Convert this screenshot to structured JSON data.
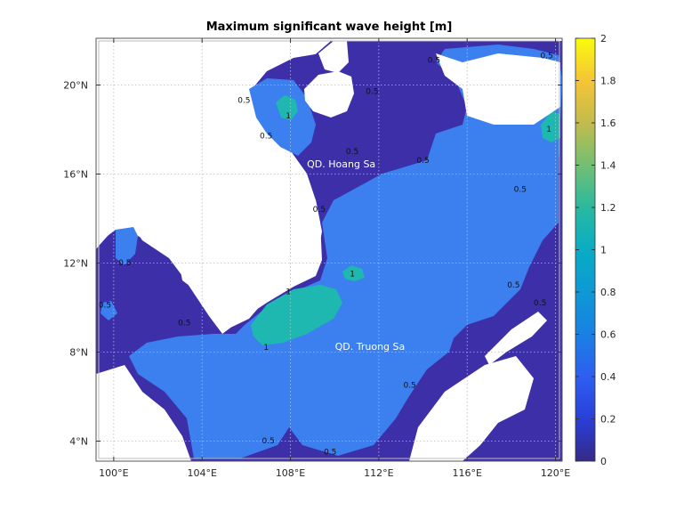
{
  "chart_data": {
    "type": "heatmap",
    "title": "Maximum significant wave height [m]",
    "xlabel": "",
    "ylabel": "",
    "xlim": [
      99.2,
      120.3
    ],
    "ylim": [
      3.1,
      22.1
    ],
    "x_ticks": [
      100,
      104,
      108,
      112,
      116,
      120
    ],
    "x_tick_labels": [
      "100°E",
      "104°E",
      "108°E",
      "112°E",
      "116°E",
      "120°E"
    ],
    "y_ticks": [
      4,
      8,
      12,
      16,
      20
    ],
    "y_tick_labels": [
      "4°N",
      "8°N",
      "12°N",
      "16°N",
      "20°N"
    ],
    "grid": true,
    "colorbar": {
      "min": 0,
      "max": 2,
      "ticks": [
        0,
        0.2,
        0.4,
        0.6,
        0.8,
        1,
        1.2,
        1.4,
        1.6,
        1.8,
        2
      ],
      "tick_labels": [
        "0",
        "0.2",
        "0.4",
        "0.6",
        "0.8",
        "1",
        "1.2",
        "1.4",
        "1.6",
        "1.8",
        "2"
      ],
      "colormap": "parula",
      "location": "right"
    },
    "levels": {
      "low": {
        "color": "#3d2fa8"
      },
      "mid": {
        "color": "#3b80ee"
      },
      "high": {
        "color": "#1fb8b0"
      }
    },
    "contour_labels": [
      {
        "text": "0.5",
        "lon": 114.5,
        "lat": 21.0
      },
      {
        "text": "0.5",
        "lon": 119.6,
        "lat": 21.2
      },
      {
        "text": "0.5",
        "lon": 105.9,
        "lat": 19.2
      },
      {
        "text": "0.5",
        "lon": 111.7,
        "lat": 19.6
      },
      {
        "text": "1",
        "lon": 107.9,
        "lat": 18.5
      },
      {
        "text": "0.5",
        "lon": 106.9,
        "lat": 17.6
      },
      {
        "text": "1",
        "lon": 119.7,
        "lat": 17.9
      },
      {
        "text": "0.5",
        "lon": 110.8,
        "lat": 16.9
      },
      {
        "text": "0.5",
        "lon": 114.0,
        "lat": 16.5
      },
      {
        "text": "0.5",
        "lon": 118.4,
        "lat": 15.2
      },
      {
        "text": "0.5",
        "lon": 109.3,
        "lat": 14.3
      },
      {
        "text": "0.5",
        "lon": 100.5,
        "lat": 11.9
      },
      {
        "text": "1",
        "lon": 110.8,
        "lat": 11.4
      },
      {
        "text": "1",
        "lon": 107.9,
        "lat": 10.6
      },
      {
        "text": "0.5",
        "lon": 118.1,
        "lat": 10.9
      },
      {
        "text": "0.5",
        "lon": 119.3,
        "lat": 10.1
      },
      {
        "text": "0.5",
        "lon": 99.6,
        "lat": 10.0
      },
      {
        "text": "0.5",
        "lon": 103.2,
        "lat": 9.2
      },
      {
        "text": "1",
        "lon": 106.9,
        "lat": 8.1
      },
      {
        "text": "0.5",
        "lon": 113.4,
        "lat": 6.4
      },
      {
        "text": "0.5",
        "lon": 107.0,
        "lat": 3.9
      },
      {
        "text": "0.5",
        "lon": 109.8,
        "lat": 3.4
      }
    ],
    "annotations": [
      {
        "text": "QD. Hoang Sa",
        "lon": 110.3,
        "lat": 16.3
      },
      {
        "text": "QD. Truong Sa",
        "lon": 111.6,
        "lat": 8.1
      }
    ]
  }
}
